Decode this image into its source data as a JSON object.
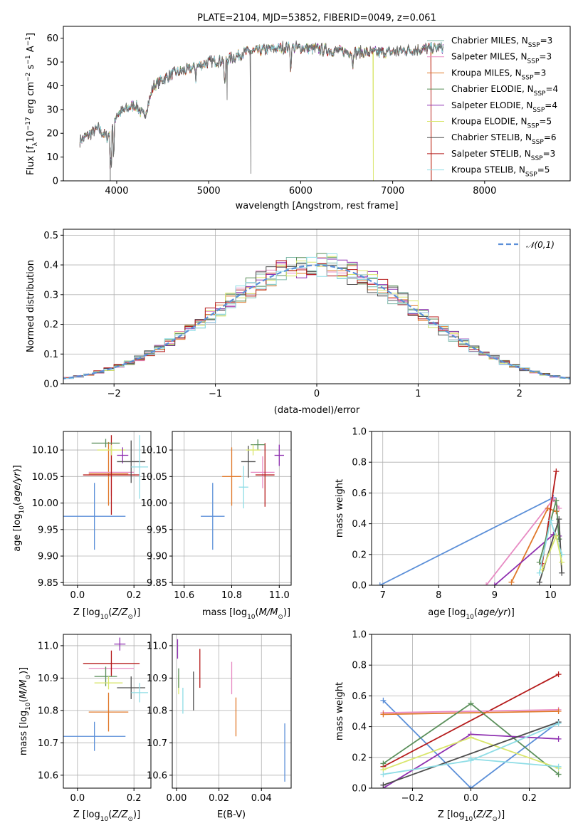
{
  "colors": {
    "chabrier_miles": "#7fb8a7",
    "salpeter_miles": "#e78ac3",
    "kroupa_miles": "#e0782a",
    "chabrier_elodie": "#5a8f5a",
    "salpeter_elodie": "#8e2fb0",
    "kroupa_elodie": "#d9e66c",
    "chabrier_stelib": "#4d4d4d",
    "salpeter_stelib": "#b51a1a",
    "kroupa_stelib": "#8fdde6",
    "data": "#6a6a6a",
    "normal": "#5b8fd8"
  },
  "chart_data": [
    {
      "id": "spectrum",
      "type": "line",
      "title": "PLATE=2104, MJD=53852, FIBERID=0049, z=0.061",
      "xlabel": "wavelength [Angstrom, rest frame]",
      "ylabel": "Flux [f_λ10^-17 erg cm^-2 s^-1 A^-1]",
      "xlim": [
        3420,
        8930
      ],
      "ylim": [
        0,
        65
      ],
      "xticks": [
        4000,
        5000,
        6000,
        7000,
        8000
      ],
      "yticks": [
        0,
        10,
        20,
        30,
        40,
        50,
        60
      ],
      "legend_position": "top-right",
      "continuum": {
        "wavelength": [
          3600,
          3800,
          3900,
          4000,
          4100,
          4200,
          4300,
          4400,
          4600,
          4800,
          5000,
          5200,
          5400,
          5600,
          5800,
          6000,
          6300,
          6600,
          6900,
          7200,
          7500
        ],
        "flux": [
          17,
          22,
          18,
          28,
          30,
          32,
          27,
          40,
          45,
          47,
          50,
          51,
          54,
          55,
          56,
          56,
          55,
          54,
          54,
          55,
          56
        ]
      },
      "series": [
        {
          "key": "chabrier_miles",
          "name": "Chabrier MILES, N_SSP=3"
        },
        {
          "key": "salpeter_miles",
          "name": "Salpeter MILES, N_SSP=3"
        },
        {
          "key": "kroupa_miles",
          "name": "Kroupa MILES, N_SSP=3"
        },
        {
          "key": "chabrier_elodie",
          "name": "Chabrier ELODIE, N_SSP=4"
        },
        {
          "key": "salpeter_elodie",
          "name": "Salpeter ELODIE, N_SSP=4"
        },
        {
          "key": "kroupa_elodie",
          "name": "Kroupa ELODIE, N_SSP=5"
        },
        {
          "key": "chabrier_stelib",
          "name": "Chabrier STELIB, N_SSP=6"
        },
        {
          "key": "salpeter_stelib",
          "name": "Salpeter STELIB, N_SSP=3"
        },
        {
          "key": "kroupa_stelib",
          "name": "Kroupa STELIB, N_SSP=5"
        }
      ]
    },
    {
      "id": "residuals",
      "type": "histogram",
      "xlabel": "(data-model)/error",
      "ylabel": "Normed distribution",
      "xlim": [
        -2.5,
        2.5
      ],
      "ylim": [
        0,
        0.52
      ],
      "xticks": [
        -2,
        -1,
        0,
        1,
        2
      ],
      "yticks": [
        0.0,
        0.1,
        0.2,
        0.3,
        0.4,
        0.5
      ],
      "grid": true,
      "legend": "𝒩(0,1)",
      "legend_position": "top-right",
      "bin_width": 0.1
    },
    {
      "id": "age_vs_Z",
      "type": "errorbar",
      "xlabel": "Z [log10(Z/Z☉)]",
      "ylabel": "age  [log10(age/yr)]",
      "xlim": [
        -0.05,
        0.26
      ],
      "ylim": [
        9.845,
        10.135
      ],
      "xticks": [
        0.0,
        0.2
      ],
      "yticks": [
        9.85,
        9.9,
        9.95,
        10.0,
        10.05,
        10.1
      ],
      "grid": true,
      "points": [
        {
          "key": "normal",
          "x": 0.06,
          "xerr": 0.11,
          "y": 9.975,
          "yerr": 0.063
        },
        {
          "key": "kroupa_miles",
          "x": 0.11,
          "xerr": 0.07,
          "y": 10.055,
          "yerr": 0.06
        },
        {
          "key": "salpeter_miles",
          "x": 0.12,
          "xerr": 0.08,
          "y": 10.058,
          "yerr": 0.045
        },
        {
          "key": "salpeter_stelib",
          "x": 0.12,
          "xerr": 0.1,
          "y": 10.053,
          "yerr": 0.075
        },
        {
          "key": "chabrier_elodie",
          "x": 0.1,
          "xerr": 0.05,
          "y": 10.113,
          "yerr": 0.008
        },
        {
          "key": "kroupa_elodie",
          "x": 0.12,
          "xerr": 0.05,
          "y": 10.1,
          "yerr": 0.01
        },
        {
          "key": "salpeter_elodie",
          "x": 0.16,
          "xerr": 0.02,
          "y": 10.09,
          "yerr": 0.015
        },
        {
          "key": "chabrier_stelib",
          "x": 0.19,
          "xerr": 0.05,
          "y": 10.078,
          "yerr": 0.04
        },
        {
          "key": "kroupa_stelib",
          "x": 0.22,
          "xerr": 0.03,
          "y": 10.068,
          "yerr": 0.06
        }
      ]
    },
    {
      "id": "age_vs_mass",
      "type": "errorbar",
      "xlabel": "mass [log10(M/M☉)]",
      "ylabel": "",
      "xlim": [
        10.55,
        11.05
      ],
      "ylim": [
        9.845,
        10.135
      ],
      "xticks": [
        10.6,
        10.8,
        11.0
      ],
      "yticks": [
        9.85,
        9.9,
        9.95,
        10.0,
        10.05,
        10.1
      ],
      "grid": true,
      "points": [
        {
          "key": "normal",
          "x": 10.72,
          "xerr": 0.05,
          "y": 9.975,
          "yerr": 0.063
        },
        {
          "key": "kroupa_miles",
          "x": 10.8,
          "xerr": 0.04,
          "y": 10.05,
          "yerr": 0.055
        },
        {
          "key": "kroupa_stelib",
          "x": 10.85,
          "xerr": 0.02,
          "y": 10.03,
          "yerr": 0.04
        },
        {
          "key": "chabrier_stelib",
          "x": 10.87,
          "xerr": 0.03,
          "y": 10.078,
          "yerr": 0.03
        },
        {
          "key": "salpeter_miles",
          "x": 10.93,
          "xerr": 0.05,
          "y": 10.058,
          "yerr": 0.03
        },
        {
          "key": "salpeter_stelib",
          "x": 10.94,
          "xerr": 0.04,
          "y": 10.053,
          "yerr": 0.06
        },
        {
          "key": "chabrier_elodie",
          "x": 10.91,
          "xerr": 0.03,
          "y": 10.11,
          "yerr": 0.01
        },
        {
          "key": "kroupa_elodie",
          "x": 10.89,
          "xerr": 0.03,
          "y": 10.1,
          "yerr": 0.01
        },
        {
          "key": "salpeter_elodie",
          "x": 11.0,
          "xerr": 0.02,
          "y": 10.09,
          "yerr": 0.02
        }
      ]
    },
    {
      "id": "weight_vs_age",
      "type": "line",
      "xlabel": "age  [log10(age/yr)]",
      "ylabel": "mass weight",
      "xlim": [
        6.8,
        10.35
      ],
      "ylim": [
        0,
        1
      ],
      "xticks": [
        7,
        8,
        9,
        10
      ],
      "yticks": [
        0.0,
        0.2,
        0.4,
        0.6,
        0.8,
        1.0
      ],
      "grid": true,
      "series": [
        {
          "key": "normal",
          "x": [
            6.95,
            10.05
          ],
          "y": [
            0.0,
            0.57
          ]
        },
        {
          "key": "salpeter_miles",
          "x": [
            8.85,
            10.05,
            10.15
          ],
          "y": [
            0.0,
            0.56,
            0.5
          ]
        },
        {
          "key": "kroupa_miles",
          "x": [
            9.3,
            9.95,
            10.1
          ],
          "y": [
            0.02,
            0.5,
            0.48
          ]
        },
        {
          "key": "salpeter_elodie",
          "x": [
            9.0,
            10.05,
            10.15
          ],
          "y": [
            0.0,
            0.33,
            0.32
          ]
        },
        {
          "key": "salpeter_stelib",
          "x": [
            9.85,
            10.1
          ],
          "y": [
            0.14,
            0.74
          ]
        },
        {
          "key": "chabrier_elodie",
          "x": [
            9.8,
            10.1,
            10.15
          ],
          "y": [
            0.15,
            0.55,
            0.3
          ]
        },
        {
          "key": "chabrier_stelib",
          "x": [
            9.8,
            10.15,
            10.2
          ],
          "y": [
            0.02,
            0.43,
            0.08
          ]
        },
        {
          "key": "kroupa_stelib",
          "x": [
            9.8,
            10.0,
            10.2
          ],
          "y": [
            0.08,
            0.42,
            0.2
          ]
        },
        {
          "key": "kroupa_elodie",
          "x": [
            9.85,
            10.1,
            10.2
          ],
          "y": [
            0.1,
            0.32,
            0.15
          ]
        }
      ]
    },
    {
      "id": "mass_vs_Z",
      "type": "errorbar",
      "xlabel": "Z [log10(Z/Z☉)]",
      "ylabel": "mass [log10(M/M☉)]",
      "xlim": [
        -0.05,
        0.26
      ],
      "ylim": [
        10.56,
        11.035
      ],
      "xticks": [
        0.0,
        0.2
      ],
      "yticks": [
        10.6,
        10.7,
        10.8,
        10.9,
        11.0
      ],
      "grid": true,
      "points": [
        {
          "key": "normal",
          "x": 0.06,
          "xerr": 0.11,
          "y": 10.72,
          "yerr": 0.045
        },
        {
          "key": "kroupa_miles",
          "x": 0.11,
          "xerr": 0.07,
          "y": 10.795,
          "yerr": 0.06
        },
        {
          "key": "salpeter_miles",
          "x": 0.12,
          "xerr": 0.08,
          "y": 10.93,
          "yerr": 0.02
        },
        {
          "key": "salpeter_stelib",
          "x": 0.12,
          "xerr": 0.1,
          "y": 10.945,
          "yerr": 0.04
        },
        {
          "key": "chabrier_elodie",
          "x": 0.1,
          "xerr": 0.04,
          "y": 10.905,
          "yerr": 0.03
        },
        {
          "key": "kroupa_elodie",
          "x": 0.11,
          "xerr": 0.05,
          "y": 10.885,
          "yerr": 0.02
        },
        {
          "key": "salpeter_elodie",
          "x": 0.15,
          "xerr": 0.02,
          "y": 11.005,
          "yerr": 0.02
        },
        {
          "key": "chabrier_stelib",
          "x": 0.19,
          "xerr": 0.05,
          "y": 10.87,
          "yerr": 0.035
        },
        {
          "key": "kroupa_stelib",
          "x": 0.22,
          "xerr": 0.03,
          "y": 10.855,
          "yerr": 0.03
        }
      ]
    },
    {
      "id": "mass_vs_ebv",
      "type": "errorbar",
      "xlabel": "E(B-V)",
      "ylabel": "",
      "xlim": [
        -0.002,
        0.054
      ],
      "ylim": [
        10.56,
        11.035
      ],
      "xticks": [
        0.0,
        0.02,
        0.04
      ],
      "yticks": [
        10.6,
        10.7,
        10.8,
        10.9,
        11.0
      ],
      "grid": true,
      "points": [
        {
          "key": "salpeter_elodie",
          "x": 0.0005,
          "xerr": 0,
          "y": 10.99,
          "yerr": 0.03
        },
        {
          "key": "kroupa_elodie",
          "x": 0.001,
          "xerr": 0,
          "y": 10.88,
          "yerr": 0.03
        },
        {
          "key": "kroupa_stelib",
          "x": 0.003,
          "xerr": 0,
          "y": 10.83,
          "yerr": 0.04
        },
        {
          "key": "chabrier_stelib",
          "x": 0.008,
          "xerr": 0,
          "y": 10.86,
          "yerr": 0.06
        },
        {
          "key": "chabrier_elodie",
          "x": 0.001,
          "xerr": 0,
          "y": 10.9,
          "yerr": 0.03
        },
        {
          "key": "salpeter_stelib",
          "x": 0.011,
          "xerr": 0,
          "y": 10.93,
          "yerr": 0.06
        },
        {
          "key": "salpeter_miles",
          "x": 0.026,
          "xerr": 0,
          "y": 10.9,
          "yerr": 0.05
        },
        {
          "key": "kroupa_miles",
          "x": 0.028,
          "xerr": 0,
          "y": 10.78,
          "yerr": 0.06
        },
        {
          "key": "normal",
          "x": 0.051,
          "xerr": 0,
          "y": 10.67,
          "yerr": 0.09
        }
      ]
    },
    {
      "id": "weight_vs_Z",
      "type": "line",
      "xlabel": "Z [log10(Z/Z☉)]",
      "ylabel": "mass weight",
      "xlim": [
        -0.34,
        0.34
      ],
      "ylim": [
        0,
        1
      ],
      "xticks": [
        -0.2,
        0.0,
        0.2
      ],
      "yticks": [
        0.0,
        0.2,
        0.4,
        0.6,
        0.8,
        1.0
      ],
      "grid": true,
      "series": [
        {
          "key": "normal",
          "x": [
            -0.3,
            0.0,
            0.3
          ],
          "y": [
            0.57,
            0.0,
            0.43
          ]
        },
        {
          "key": "salpeter_stelib",
          "x": [
            -0.3,
            0.3
          ],
          "y": [
            0.14,
            0.74
          ]
        },
        {
          "key": "salpeter_miles",
          "x": [
            -0.3,
            0.3
          ],
          "y": [
            0.49,
            0.51
          ]
        },
        {
          "key": "kroupa_miles",
          "x": [
            -0.3,
            0.3
          ],
          "y": [
            0.48,
            0.5
          ]
        },
        {
          "key": "chabrier_elodie",
          "x": [
            -0.3,
            0.0,
            0.3
          ],
          "y": [
            0.16,
            0.55,
            0.09
          ]
        },
        {
          "key": "salpeter_elodie",
          "x": [
            -0.3,
            0.0,
            0.3
          ],
          "y": [
            0.0,
            0.35,
            0.32
          ]
        },
        {
          "key": "kroupa_elodie",
          "x": [
            -0.3,
            0.0,
            0.3
          ],
          "y": [
            0.12,
            0.33,
            0.13
          ]
        },
        {
          "key": "chabrier_stelib",
          "x": [
            -0.3,
            0.3
          ],
          "y": [
            0.02,
            0.43
          ]
        },
        {
          "key": "kroupa_stelib",
          "x": [
            -0.3,
            0.0,
            0.3
          ],
          "y": [
            0.09,
            0.18,
            0.42
          ]
        },
        {
          "key": "kroupa_stelib",
          "x": [
            0.0,
            0.3
          ],
          "y": [
            0.19,
            0.14
          ]
        }
      ]
    }
  ]
}
